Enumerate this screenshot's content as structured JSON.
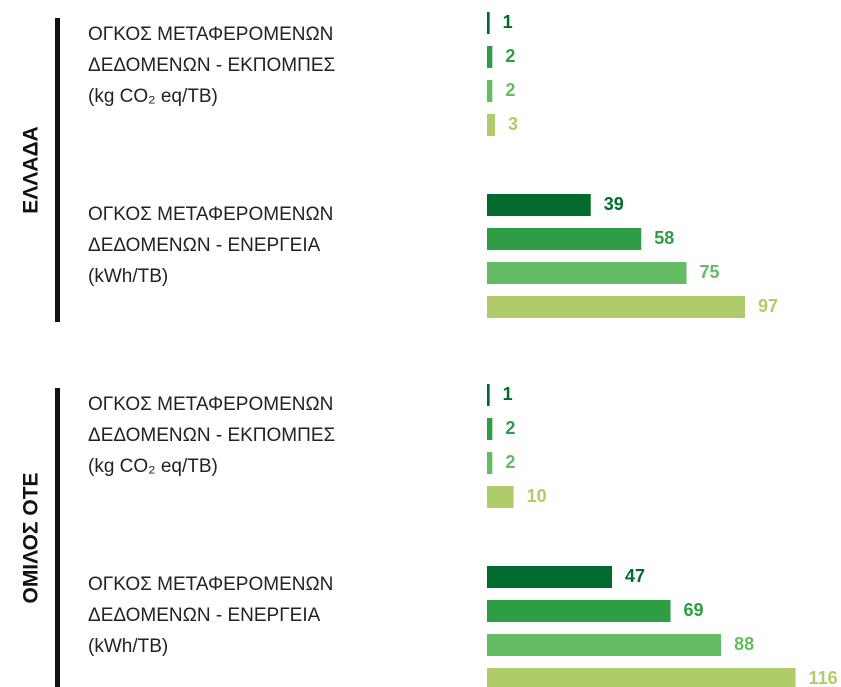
{
  "groups": [
    "ΕΛΛΑΔΑ",
    "ΟΜΙΛΟΣ ΟΤΕ"
  ],
  "chart_data": [
    {
      "type": "bar",
      "title": [
        "ΟΓΚΟΣ ΜΕΤΑΦΕΡΟΜΕΝΩΝ",
        "ΔΕΔΟΜΕΝΩΝ - ΕΚΠΟΜΠΕΣ",
        "(kg CO₂ eq/TB)"
      ],
      "values": [
        1,
        2,
        2,
        3
      ],
      "colors": [
        "#006b2d",
        "#2e9e45",
        "#63bb63",
        "#b0cc6a"
      ]
    },
    {
      "type": "bar",
      "title": [
        "ΟΓΚΟΣ ΜΕΤΑΦΕΡΟΜΕΝΩΝ",
        "ΔΕΔΟΜΕΝΩΝ - ΕΝΕΡΓΕΙΑ",
        "(kWh/TB)"
      ],
      "values": [
        39,
        58,
        75,
        97
      ],
      "colors": [
        "#006b2d",
        "#2e9e45",
        "#63bb63",
        "#b0cc6a"
      ]
    },
    {
      "type": "bar",
      "title": [
        "ΟΓΚΟΣ ΜΕΤΑΦΕΡΟΜΕΝΩΝ",
        "ΔΕΔΟΜΕΝΩΝ - ΕΚΠΟΜΠΕΣ",
        "(kg CO₂ eq/TB)"
      ],
      "values": [
        1,
        2,
        2,
        10
      ],
      "colors": [
        "#006b2d",
        "#2e9e45",
        "#63bb63",
        "#b0cc6a"
      ]
    },
    {
      "type": "bar",
      "title": [
        "ΟΓΚΟΣ ΜΕΤΑΦΕΡΟΜΕΝΩΝ",
        "ΔΕΔΟΜΕΝΩΝ - ΕΝΕΡΓΕΙΑ",
        "(kWh/TB)"
      ],
      "values": [
        47,
        69,
        88,
        116
      ],
      "colors": [
        "#006b2d",
        "#2e9e45",
        "#63bb63",
        "#b0cc6a"
      ]
    }
  ]
}
